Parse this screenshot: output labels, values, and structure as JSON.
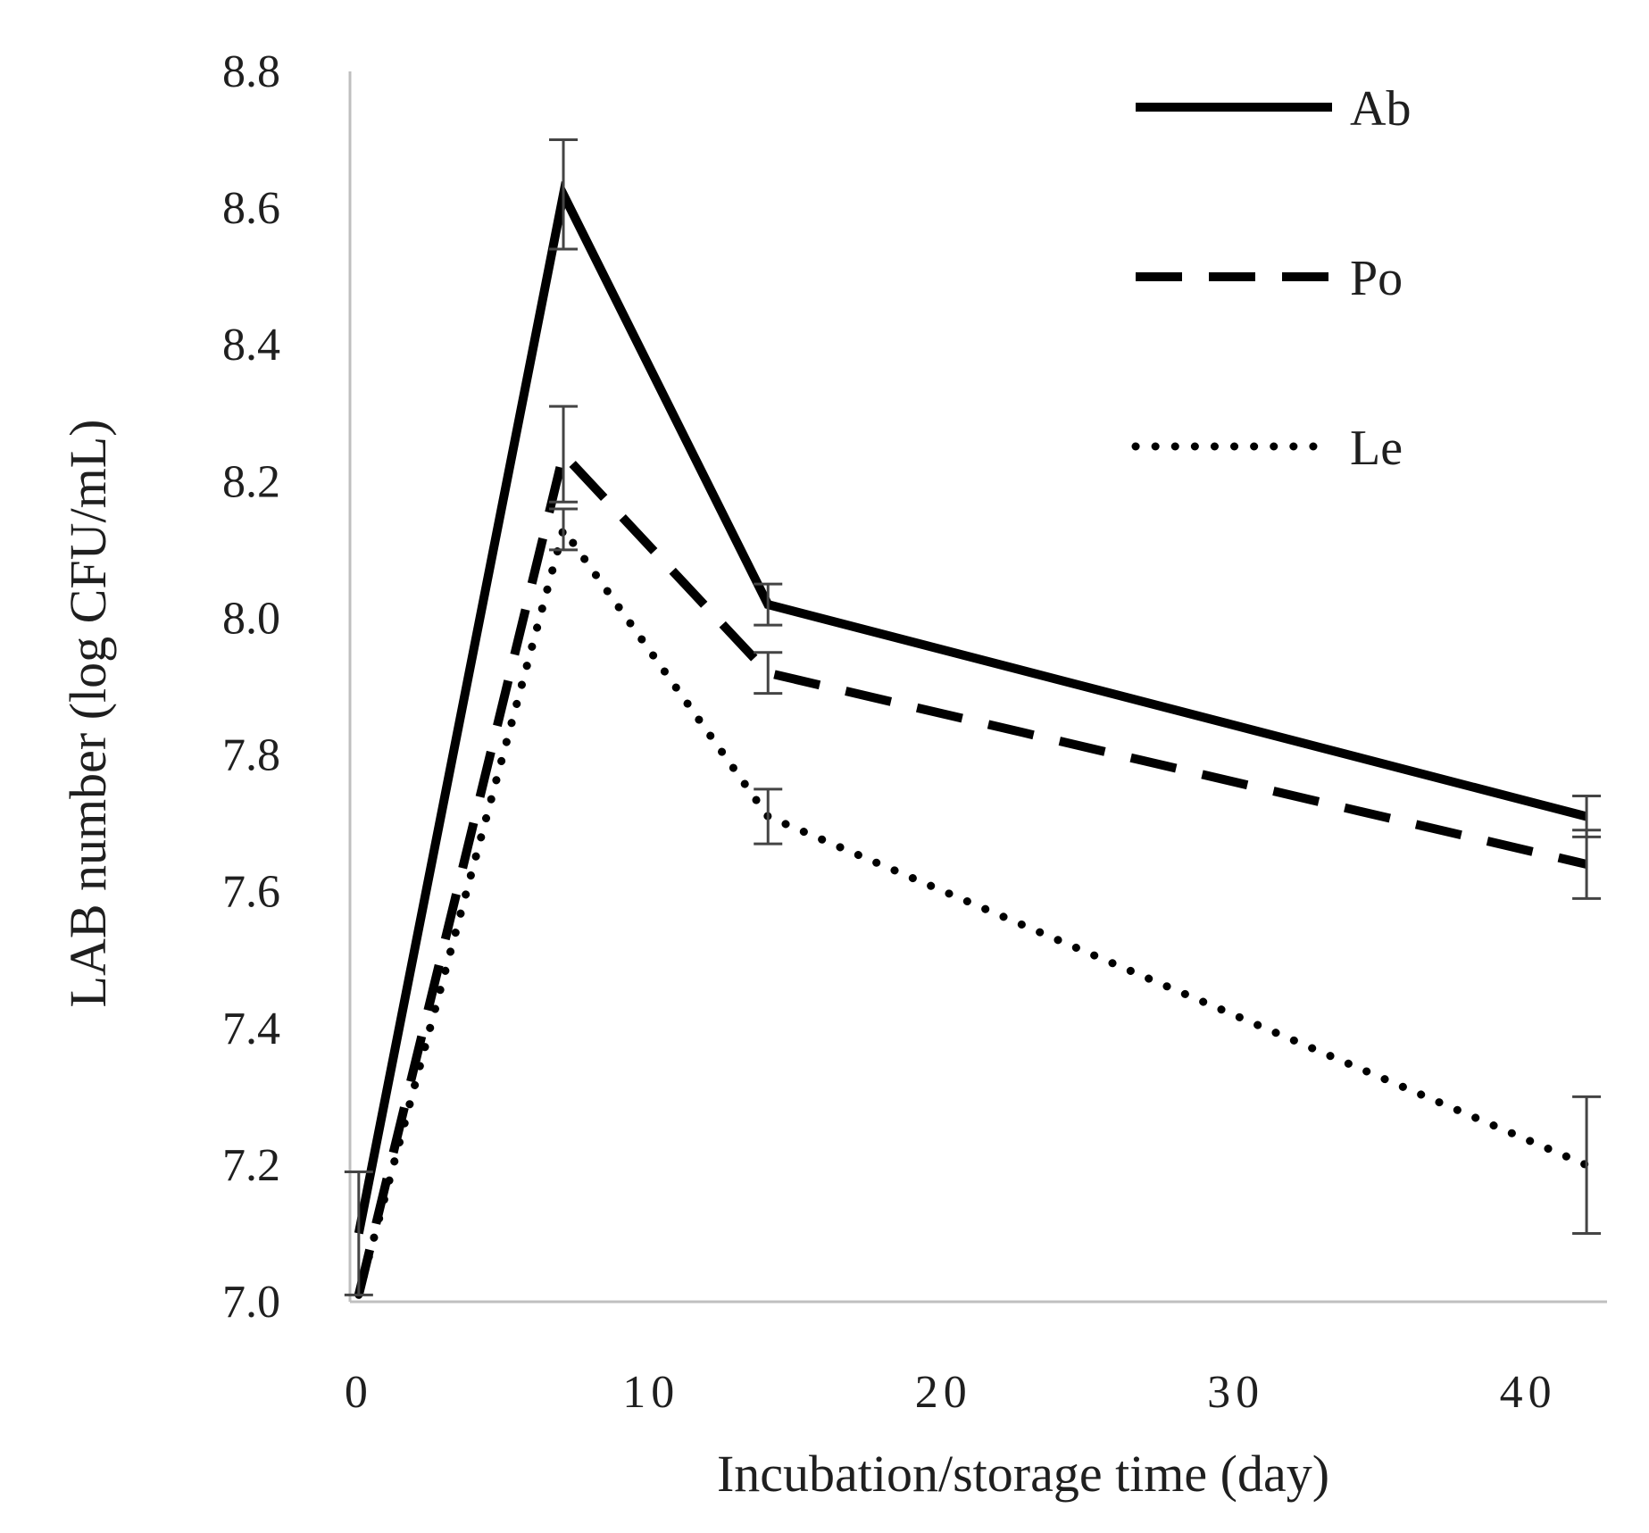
{
  "chart_data": {
    "type": "line",
    "title": "",
    "xlabel": "Incubation/storage time (day)",
    "ylabel": "LAB number (log CFU/mL)",
    "xlim": [
      -0.3,
      42.7
    ],
    "ylim": [
      7.0,
      8.8
    ],
    "x_ticks": [
      0,
      10,
      20,
      30,
      40
    ],
    "x_tick_labels": [
      "0",
      "10",
      "20",
      "30",
      "40"
    ],
    "y_ticks": [
      7.0,
      7.2,
      7.4,
      7.6,
      7.8,
      8.0,
      8.2,
      8.4,
      8.6,
      8.8
    ],
    "y_tick_labels": [
      "7.0",
      "7.2",
      "7.4",
      "7.6",
      "7.8",
      "8.0",
      "8.2",
      "8.4",
      "8.6",
      "8.8"
    ],
    "grid": false,
    "legend_position": "top-right",
    "x": [
      0,
      7,
      14,
      42
    ],
    "series": [
      {
        "name": "Ab",
        "style": "solid",
        "values": [
          7.1,
          8.62,
          8.02,
          7.71
        ],
        "errors": [
          0.09,
          0.08,
          0.03,
          0.03
        ]
      },
      {
        "name": "Po",
        "style": "dashed",
        "values": [
          7.01,
          8.24,
          7.92,
          7.64
        ],
        "errors": [
          0.0,
          0.07,
          0.03,
          0.05
        ]
      },
      {
        "name": "Le",
        "style": "dotted",
        "values": [
          7.01,
          8.13,
          7.71,
          7.2
        ],
        "errors": [
          0.0,
          0.03,
          0.04,
          0.1
        ]
      }
    ],
    "colors": {
      "line": "#000000",
      "error_bar": "#444444",
      "axis": "#bfbfbf",
      "text": "#1f1f1f"
    }
  }
}
